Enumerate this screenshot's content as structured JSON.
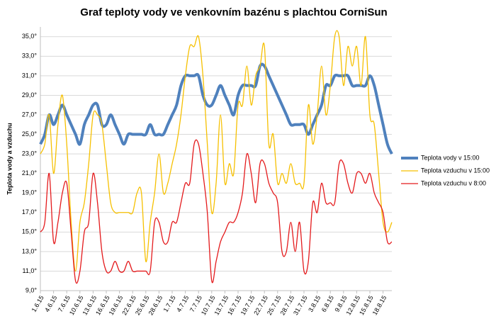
{
  "chart_data": {
    "type": "line",
    "title": "Graf teploty vody ve venkovním bazénu s plachtou CorniSun",
    "y_label": "Teplota vody a vzduchu",
    "categories": [
      "1.6.15",
      null,
      null,
      "4.6.15",
      null,
      null,
      "7.6.15",
      null,
      null,
      "10.6.15",
      null,
      null,
      "13.6.15",
      null,
      null,
      "16.6.15",
      null,
      null,
      "19.6.15",
      null,
      null,
      "22.6.15",
      null,
      null,
      "25.6.15",
      null,
      null,
      "28.6.15",
      null,
      null,
      "1.7.15",
      null,
      null,
      "4.7.15",
      null,
      null,
      "7.7.15",
      null,
      null,
      "10.7.15",
      null,
      null,
      "13.7.15",
      null,
      null,
      "16.7.15",
      null,
      null,
      "19.7.15",
      null,
      null,
      "22.7.15",
      null,
      null,
      "25.7.15",
      null,
      null,
      "28.7.15",
      null,
      null,
      "31.7.15",
      null,
      null,
      "3.8.15",
      null,
      null,
      "6.8.15",
      null,
      null,
      "9.8.15",
      null,
      null,
      "12.8.15",
      null,
      null,
      "15.8.15",
      null,
      null,
      "18.8.15",
      null,
      null
    ],
    "series": [
      {
        "name": "Teplota vody v 15:00",
        "color": "#4f81bd",
        "width": 4,
        "values": [
          24,
          25,
          27,
          26,
          27,
          28,
          27,
          26,
          25,
          24,
          26,
          27,
          28,
          28,
          26,
          26,
          27,
          26,
          25,
          24,
          25,
          25,
          25,
          25,
          25,
          26,
          25,
          25,
          25,
          26,
          27,
          28,
          30,
          31,
          31,
          31,
          31,
          29,
          28,
          28,
          29,
          30,
          29,
          28,
          27,
          29,
          30,
          30,
          30,
          30,
          32,
          32,
          31,
          30,
          29,
          28,
          27,
          26,
          26,
          26,
          26,
          25,
          26,
          27,
          28,
          30,
          30,
          31,
          31,
          31,
          31,
          30,
          30,
          30,
          30,
          31,
          30,
          28,
          26,
          24,
          23
        ]
      },
      {
        "name": "Teplota vzduchu v 15:00",
        "color": "#f6c000",
        "width": 1.3,
        "values": [
          23,
          24,
          27,
          21,
          26,
          29,
          24,
          16,
          11,
          16,
          18,
          22,
          27,
          27,
          26,
          22,
          18,
          17,
          17,
          17,
          17,
          17,
          19,
          19,
          12,
          16,
          19,
          23,
          19,
          20,
          22,
          24,
          27,
          31,
          34,
          34,
          35,
          31,
          24,
          17,
          20,
          27,
          20,
          22,
          21,
          28,
          28,
          32,
          28,
          31,
          32,
          34,
          24,
          25,
          20,
          21,
          20,
          22,
          20,
          20,
          20,
          28,
          24,
          27,
          32,
          27,
          30,
          35,
          35,
          30,
          34,
          32,
          34,
          30,
          35,
          27,
          26,
          21,
          16,
          15,
          16
        ]
      },
      {
        "name": "Teplota vzduchu v 8:00",
        "color": "#e41a1c",
        "width": 1.3,
        "values": [
          15,
          16,
          21,
          14,
          16,
          19,
          20,
          15,
          10,
          11,
          15,
          16,
          21,
          18,
          13,
          11,
          11,
          12,
          11,
          11,
          12,
          11,
          11,
          11,
          11,
          11,
          16,
          16,
          14,
          14,
          16,
          16,
          18,
          20,
          20,
          24,
          24,
          21,
          17,
          10,
          12,
          14,
          15,
          16,
          16,
          17,
          19,
          23,
          21,
          18,
          22,
          22,
          20,
          19,
          18,
          13,
          13,
          16,
          13,
          16,
          11,
          12,
          18,
          17,
          20,
          18,
          18,
          18,
          22,
          22,
          20,
          19,
          21,
          21,
          20,
          21,
          19,
          18,
          17,
          14,
          14
        ]
      }
    ],
    "ylim": [
      9,
      36
    ],
    "yticks": [
      {
        "value": 9,
        "label": "9,0°"
      },
      {
        "value": 11,
        "label": "11,0°"
      },
      {
        "value": 13,
        "label": "13,0°"
      },
      {
        "value": 15,
        "label": "15,0°"
      },
      {
        "value": 17,
        "label": "17,0°"
      },
      {
        "value": 19,
        "label": "19,0°"
      },
      {
        "value": 21,
        "label": "21,0°"
      },
      {
        "value": 23,
        "label": "23,0°"
      },
      {
        "value": 25,
        "label": "25,0°"
      },
      {
        "value": 27,
        "label": "27,0°"
      },
      {
        "value": 29,
        "label": "29,0°"
      },
      {
        "value": 31,
        "label": "31,0°"
      },
      {
        "value": 33,
        "label": "33,0°"
      },
      {
        "value": 35,
        "label": "35,0°"
      }
    ],
    "grid": true,
    "legend": "right"
  }
}
